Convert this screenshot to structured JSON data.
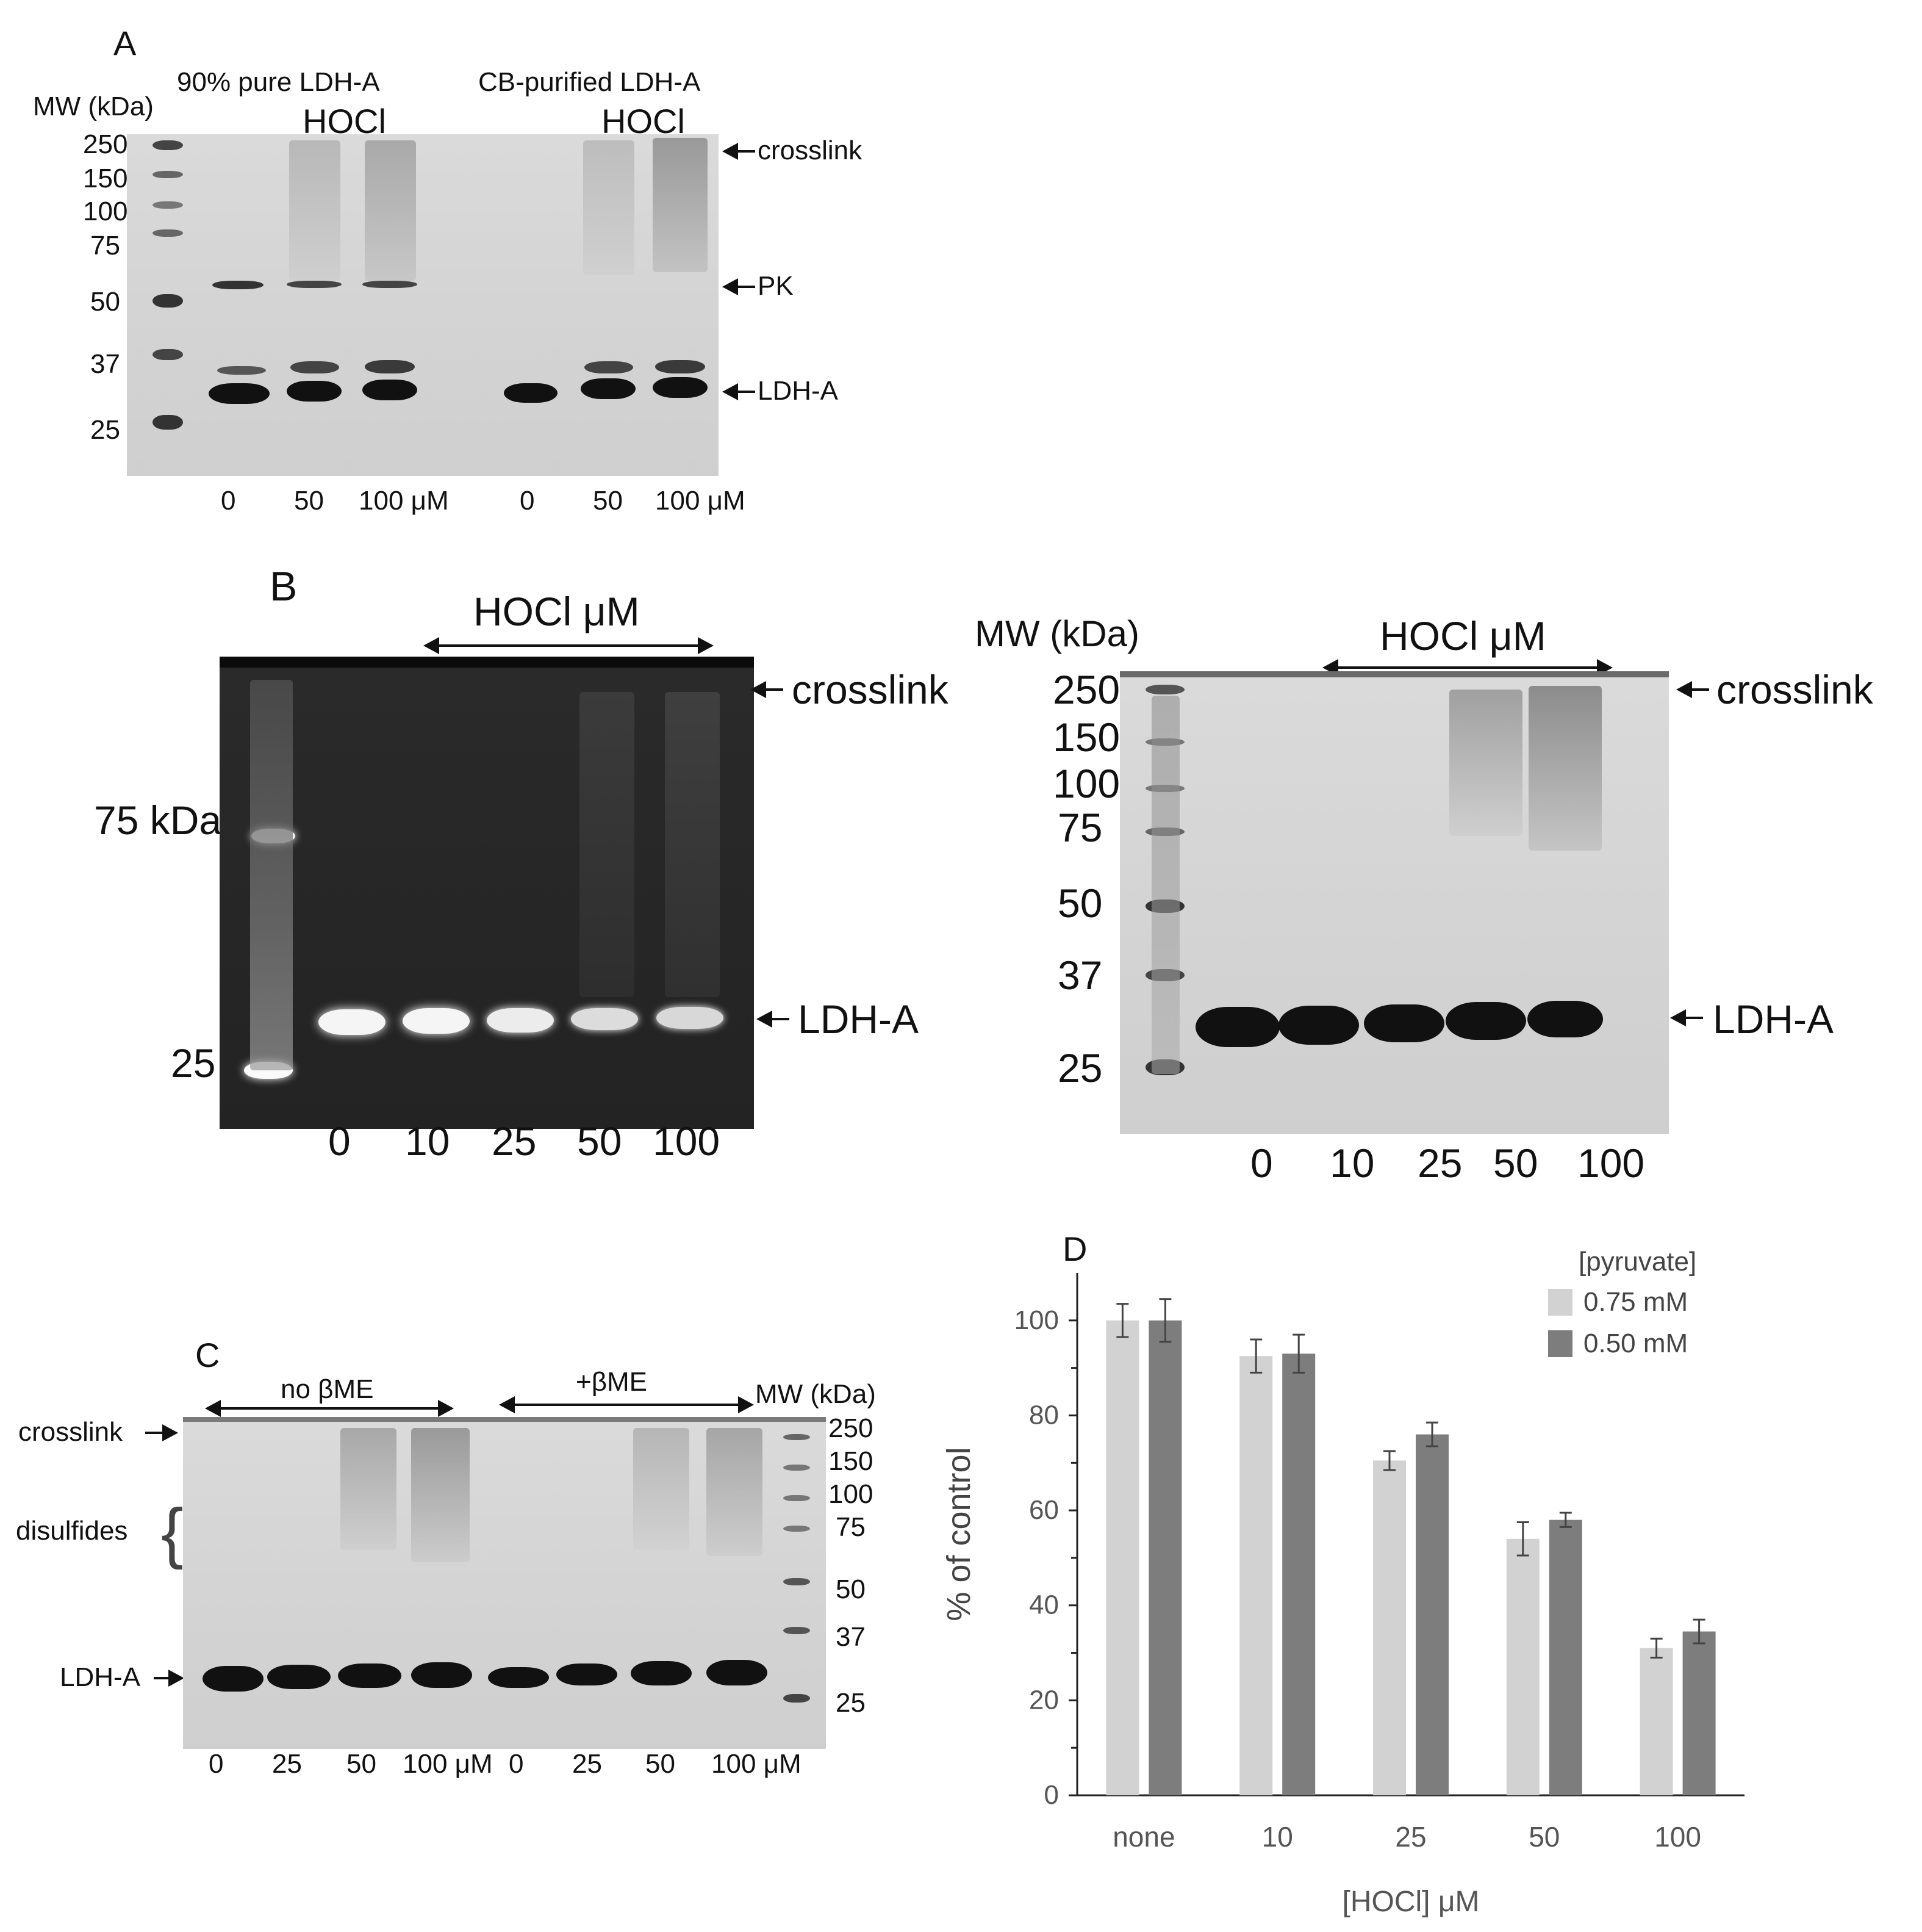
{
  "panel_a": {
    "letter": "A",
    "mw_label": "MW (kDa)",
    "mw_markers": [
      "250",
      "150",
      "100",
      "75",
      "50",
      "37",
      "25"
    ],
    "group1_title": "90% pure LDH-A",
    "group2_title": "CB-purified LDH-A",
    "hocl_label": "HOCl",
    "lanes_group1": [
      "0",
      "50",
      "100 μM"
    ],
    "lanes_group2": [
      "0",
      "50",
      "100 μM"
    ],
    "annotations": {
      "crosslink": "crosslink",
      "pk": "PK",
      "ldha": "LDH-A"
    }
  },
  "panel_b": {
    "letter": "B",
    "left": {
      "hocl_label": "HOCl μM",
      "marker_75": "75 kDa",
      "marker_25": "25",
      "lanes": [
        "0",
        "10",
        "25",
        "50",
        "100"
      ],
      "annotations": {
        "crosslink": "crosslink",
        "ldha": "LDH-A"
      }
    },
    "right": {
      "mw_label": "MW (kDa)",
      "hocl_label": "HOCl μM",
      "mw_markers": [
        "250",
        "150",
        "100",
        "75",
        "50",
        "37",
        "25"
      ],
      "lanes": [
        "0",
        "10",
        "25",
        "50",
        "100"
      ],
      "annotations": {
        "crosslink": "crosslink",
        "ldha": "LDH-A"
      }
    }
  },
  "panel_c": {
    "letter": "C",
    "no_bme": "no βME",
    "plus_bme": "+βME",
    "mw_label": "MW (kDa)",
    "mw_markers": [
      "250",
      "150",
      "100",
      "75",
      "50",
      "37",
      "25"
    ],
    "lanes": [
      "0",
      "25",
      "50",
      "100 μM",
      "0",
      "25",
      "50",
      "100 μM"
    ],
    "annotations": {
      "crosslink": "crosslink",
      "disulfides": "disulfides",
      "ldha": "LDH-A"
    }
  },
  "panel_d": {
    "letter": "D",
    "chart_data": {
      "type": "bar",
      "categories": [
        "none",
        "10",
        "25",
        "50",
        "100"
      ],
      "series": [
        {
          "name": "0.75 mM",
          "values": [
            100,
            92.5,
            70.5,
            54,
            31
          ],
          "errors": [
            3.5,
            3.5,
            2,
            3.5,
            2
          ],
          "color": "#d2d2d2"
        },
        {
          "name": "0.50 mM",
          "values": [
            100,
            93,
            76,
            58,
            34.5
          ],
          "errors": [
            4.5,
            4,
            2.5,
            1.5,
            2.5
          ],
          "color": "#7d7d7d"
        }
      ],
      "xlabel": "[HOCl] μM",
      "ylabel": "% of control",
      "ylim": [
        0,
        110
      ],
      "yticks": [
        "0",
        "20",
        "40",
        "60",
        "80",
        "100"
      ],
      "legend_title": "[pyruvate]",
      "legend_position": "top-right",
      "grid": false
    }
  }
}
